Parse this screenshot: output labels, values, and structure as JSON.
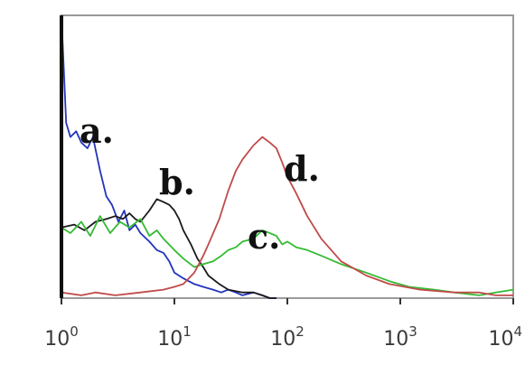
{
  "chart_data": {
    "type": "line",
    "title": "",
    "xlabel": "",
    "ylabel": "",
    "x_scale": "log",
    "xlim": [
      1,
      10000
    ],
    "ylim": [
      0,
      100
    ],
    "grid": false,
    "x_ticks": [
      {
        "base": "10",
        "exp": "0",
        "value": 1
      },
      {
        "base": "10",
        "exp": "1",
        "value": 10
      },
      {
        "base": "10",
        "exp": "2",
        "value": 100
      },
      {
        "base": "10",
        "exp": "3",
        "value": 1000
      },
      {
        "base": "10",
        "exp": "4",
        "value": 10000
      }
    ],
    "series": [
      {
        "name": "a.",
        "color": "#2233bb",
        "x": [
          1,
          1.1,
          1.2,
          1.35,
          1.5,
          1.7,
          1.9,
          2.2,
          2.5,
          2.8,
          3.2,
          3.6,
          4,
          4.5,
          5,
          6,
          7,
          8,
          9,
          10,
          12,
          15,
          18,
          22,
          26,
          30,
          35,
          40,
          50,
          60,
          70,
          80
        ],
        "y": [
          100,
          62,
          57,
          59,
          55,
          53,
          57,
          45,
          36,
          33,
          27,
          31,
          24,
          26,
          23,
          20,
          17,
          16,
          13,
          9,
          7,
          5,
          4,
          3,
          2,
          3,
          2,
          1,
          2,
          1,
          0,
          0
        ]
      },
      {
        "name": "b.",
        "color": "#1a1a1a",
        "x": [
          1,
          1.3,
          1.6,
          2,
          2.5,
          3,
          3.5,
          4,
          4.5,
          5,
          6,
          7,
          8,
          9,
          10,
          11,
          12,
          14,
          16,
          18,
          20,
          25,
          30,
          40,
          50,
          60,
          70,
          80
        ],
        "y": [
          25,
          26,
          24,
          27,
          28,
          29,
          28,
          30,
          28,
          27,
          31,
          35,
          34,
          33,
          31,
          28,
          24,
          19,
          14,
          11,
          8,
          5,
          3,
          2,
          2,
          1,
          0,
          0
        ]
      },
      {
        "name": "c.",
        "color": "#33bb33",
        "x": [
          1,
          1.2,
          1.5,
          1.8,
          2.2,
          2.7,
          3.3,
          4,
          5,
          6,
          7,
          8,
          10,
          12,
          15,
          18,
          22,
          26,
          30,
          35,
          40,
          50,
          60,
          70,
          80,
          90,
          100,
          120,
          150,
          200,
          300,
          500,
          800,
          1200,
          2000,
          3000,
          5000,
          7000,
          10000
        ],
        "y": [
          25,
          23,
          27,
          22,
          29,
          23,
          27,
          25,
          28,
          22,
          24,
          21,
          17,
          14,
          11,
          12,
          13,
          15,
          17,
          18,
          20,
          21,
          24,
          23,
          22,
          19,
          20,
          18,
          17,
          15,
          12,
          9,
          6,
          4,
          3,
          2,
          1,
          2,
          3
        ]
      },
      {
        "name": "d.",
        "color": "#c04a4a",
        "x": [
          1,
          1.5,
          2,
          3,
          5,
          8,
          10,
          12,
          15,
          18,
          20,
          25,
          30,
          35,
          40,
          50,
          60,
          70,
          80,
          90,
          100,
          120,
          150,
          200,
          300,
          500,
          800,
          1500,
          3000,
          5000,
          7000,
          10000
        ],
        "y": [
          2,
          1,
          2,
          1,
          2,
          3,
          4,
          5,
          9,
          15,
          19,
          28,
          38,
          45,
          49,
          54,
          57,
          55,
          53,
          48,
          43,
          37,
          29,
          21,
          13,
          8,
          5,
          3,
          2,
          2,
          1,
          1
        ]
      }
    ]
  }
}
